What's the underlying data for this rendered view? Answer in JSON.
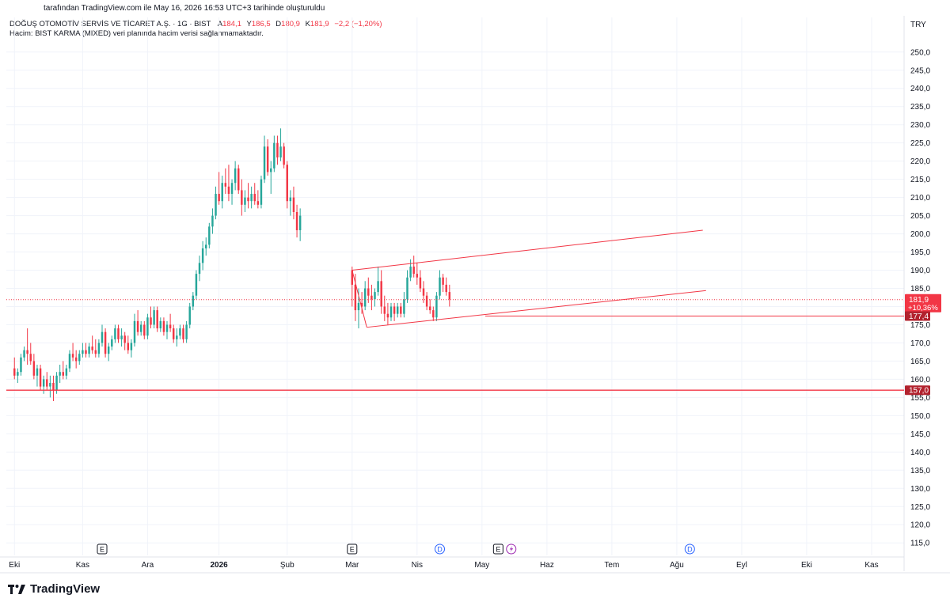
{
  "header": {
    "published_line": "tarafından TradingView.com ile May 16, 2026 16:53 UTC+3 tarihinde oluşturuldu",
    "symbol": "DOĞUŞ OTOMOTİV SERVİS VE TİCARET A.Ş. · 1G · BIST",
    "open_label": "A",
    "open": "184,1",
    "high_label": "Y",
    "high": "186,5",
    "low_label": "D",
    "low": "180,9",
    "close_label": "K",
    "close": "181,9",
    "change": "−2,2 (−1,20%)",
    "volume_note": "Hacim: BIST KARMA (MIXED) veri planında hacim verisi sağlanmamaktadır."
  },
  "brand": {
    "logo_text": "TradingView",
    "logo_icon": "tradingview-logo-icon"
  },
  "colors": {
    "up": "#26a69a",
    "down": "#f23645",
    "line": "#f23645",
    "grid": "#f0f3fa",
    "axis_text": "#131722"
  },
  "chart_data": {
    "type": "candlestick",
    "currency": "TRY",
    "ylim": [
      112,
      253
    ],
    "y_ticks": [
      "250,0",
      "245,0",
      "240,0",
      "235,0",
      "230,0",
      "225,0",
      "220,0",
      "215,0",
      "210,0",
      "205,0",
      "200,0",
      "195,0",
      "190,0",
      "185,0",
      "180,0",
      "175,0",
      "170,0",
      "165,0",
      "160,0",
      "155,0",
      "150,0",
      "145,0",
      "140,0",
      "135,0",
      "130,0",
      "125,0",
      "120,0",
      "115,0"
    ],
    "x_labels": [
      {
        "label": "Eki",
        "x": 0
      },
      {
        "label": "Kas",
        "x": 21
      },
      {
        "label": "Ara",
        "x": 41
      },
      {
        "label": "2026",
        "x": 63,
        "bold": true
      },
      {
        "label": "Şub",
        "x": 84
      },
      {
        "label": "Mar",
        "x": 104
      },
      {
        "label": "Nis",
        "x": 124
      },
      {
        "label": "May",
        "x": 144
      },
      {
        "label": "Haz",
        "x": 164
      },
      {
        "label": "Tem",
        "x": 184
      },
      {
        "label": "Ağu",
        "x": 204
      },
      {
        "label": "Eyl",
        "x": 224
      },
      {
        "label": "Eki",
        "x": 244
      },
      {
        "label": "Kas",
        "x": 264
      }
    ],
    "x_range": [
      -2.5,
      274
    ],
    "candles": [
      [
        163,
        166,
        160,
        161
      ],
      [
        161,
        163,
        159,
        162
      ],
      [
        162,
        167,
        161,
        166
      ],
      [
        166,
        169,
        165,
        168
      ],
      [
        168,
        174,
        164,
        167
      ],
      [
        167,
        170,
        164,
        165
      ],
      [
        165,
        167,
        160,
        161
      ],
      [
        161,
        164,
        158,
        163
      ],
      [
        163,
        164,
        157,
        158
      ],
      [
        158,
        161,
        156,
        160
      ],
      [
        160,
        162,
        157,
        158
      ],
      [
        158,
        161,
        155,
        159
      ],
      [
        159,
        161,
        154,
        157
      ],
      [
        157,
        162,
        156,
        161
      ],
      [
        161,
        164,
        159,
        162
      ],
      [
        162,
        165,
        160,
        161
      ],
      [
        161,
        164,
        160,
        163
      ],
      [
        163,
        168,
        162,
        167
      ],
      [
        167,
        170,
        165,
        166
      ],
      [
        166,
        168,
        163,
        165
      ],
      [
        165,
        168,
        164,
        167
      ],
      [
        167,
        170,
        166,
        168
      ],
      [
        168,
        170,
        166,
        167
      ],
      [
        167,
        170,
        166,
        169
      ],
      [
        169,
        172,
        167,
        168
      ],
      [
        168,
        171,
        166,
        167
      ],
      [
        167,
        171,
        166,
        170
      ],
      [
        170,
        175,
        169,
        173
      ],
      [
        173,
        174,
        166,
        167
      ],
      [
        167,
        170,
        165,
        169
      ],
      [
        169,
        172,
        168,
        171
      ],
      [
        171,
        175,
        170,
        174
      ],
      [
        174,
        175,
        170,
        171
      ],
      [
        171,
        174,
        169,
        172
      ],
      [
        172,
        173,
        168,
        170
      ],
      [
        170,
        172,
        167,
        168
      ],
      [
        168,
        171,
        166,
        170
      ],
      [
        170,
        178,
        169,
        176
      ],
      [
        176,
        179,
        172,
        173
      ],
      [
        173,
        176,
        172,
        175
      ],
      [
        175,
        176,
        171,
        172
      ],
      [
        172,
        178,
        171,
        177
      ],
      [
        177,
        180,
        174,
        175
      ],
      [
        175,
        180,
        174,
        179
      ],
      [
        179,
        180,
        173,
        174
      ],
      [
        174,
        177,
        173,
        176
      ],
      [
        176,
        177,
        172,
        173
      ],
      [
        173,
        176,
        171,
        175
      ],
      [
        175,
        178,
        173,
        174
      ],
      [
        174,
        175,
        170,
        171
      ],
      [
        171,
        174,
        169,
        172
      ],
      [
        172,
        175,
        171,
        174
      ],
      [
        174,
        175,
        170,
        171
      ],
      [
        171,
        176,
        170,
        175
      ],
      [
        175,
        181,
        174,
        180
      ],
      [
        180,
        184,
        179,
        183
      ],
      [
        183,
        190,
        182,
        189
      ],
      [
        189,
        194,
        187,
        192
      ],
      [
        192,
        198,
        190,
        196
      ],
      [
        196,
        199,
        194,
        197
      ],
      [
        197,
        203,
        196,
        202
      ],
      [
        202,
        207,
        200,
        205
      ],
      [
        205,
        213,
        204,
        211
      ],
      [
        211,
        217,
        208,
        209
      ],
      [
        209,
        216,
        207,
        214
      ],
      [
        214,
        218,
        211,
        213
      ],
      [
        213,
        219,
        209,
        211
      ],
      [
        211,
        215,
        208,
        214
      ],
      [
        214,
        220,
        212,
        218
      ],
      [
        218,
        219,
        211,
        212
      ],
      [
        212,
        215,
        205,
        208
      ],
      [
        208,
        212,
        206,
        210
      ],
      [
        210,
        214,
        207,
        209
      ],
      [
        209,
        213,
        207,
        211
      ],
      [
        211,
        214,
        208,
        209
      ],
      [
        209,
        212,
        207,
        208
      ],
      [
        208,
        216,
        207,
        215
      ],
      [
        215,
        227,
        214,
        224
      ],
      [
        224,
        226,
        216,
        217
      ],
      [
        217,
        220,
        211,
        218
      ],
      [
        218,
        227,
        217,
        225
      ],
      [
        225,
        227,
        219,
        221
      ],
      [
        221,
        229,
        220,
        224
      ],
      [
        224,
        225,
        218,
        219
      ],
      [
        219,
        220,
        207,
        209
      ],
      [
        209,
        212,
        205,
        210
      ],
      [
        210,
        213,
        204,
        206
      ],
      [
        206,
        208,
        199,
        201
      ],
      [
        201,
        207,
        198,
        205
      ],
      [
        190,
        191,
        180,
        186
      ],
      [
        186,
        189,
        176,
        179
      ],
      [
        179,
        185,
        174,
        181
      ],
      [
        181,
        184,
        178,
        180
      ],
      [
        180,
        187,
        179,
        185
      ],
      [
        185,
        188,
        181,
        183
      ],
      [
        183,
        186,
        179,
        182
      ],
      [
        182,
        185,
        180,
        184
      ],
      [
        184,
        191,
        183,
        187
      ],
      [
        187,
        190,
        178,
        180
      ],
      [
        180,
        183,
        176,
        178
      ],
      [
        178,
        181,
        175,
        177
      ],
      [
        177,
        181,
        176,
        180
      ],
      [
        180,
        181,
        176,
        178
      ],
      [
        178,
        181,
        177,
        180
      ],
      [
        180,
        181,
        177,
        178
      ],
      [
        178,
        184,
        177,
        182
      ],
      [
        182,
        190,
        181,
        188
      ],
      [
        188,
        193,
        187,
        191
      ],
      [
        191,
        194,
        188,
        189
      ],
      [
        189,
        192,
        186,
        188
      ],
      [
        188,
        190,
        184,
        185
      ],
      [
        185,
        187,
        181,
        183
      ],
      [
        183,
        184,
        179,
        180
      ],
      [
        180,
        182,
        178,
        179
      ],
      [
        179,
        180,
        176,
        177
      ],
      [
        177,
        184,
        176,
        183
      ],
      [
        183,
        190,
        182,
        188
      ],
      [
        188,
        189,
        184,
        186
      ],
      [
        186,
        188,
        183,
        184
      ],
      [
        184,
        186,
        180,
        182
      ]
    ],
    "lines": [
      {
        "name": "upper-channel",
        "x1": 104,
        "y1": 190.0,
        "x2": 212,
        "y2": 201.0
      },
      {
        "name": "lower-channel",
        "x1": 108.5,
        "y1": 174.3,
        "x2": 213,
        "y2": 184.4
      },
      {
        "name": "upper-channel-left-edge",
        "x1": 104,
        "y1": 190.0,
        "x2": 108.5,
        "y2": 174.3
      },
      {
        "name": "support-177-4",
        "x1": 145,
        "y1": 177.4,
        "x2": 274,
        "y2": 177.4
      },
      {
        "name": "support-157",
        "x1": -2.5,
        "y1": 157.0,
        "x2": 274,
        "y2": 157.0
      }
    ],
    "price_line": {
      "value": 181.9,
      "label": "181,9",
      "change": "+10,36%"
    },
    "level_labels": [
      {
        "value": 177.4,
        "label": "177,4"
      },
      {
        "value": 157.0,
        "label": "157,0"
      }
    ],
    "event_markers": [
      {
        "type": "E",
        "x": 27,
        "color": "#131722"
      },
      {
        "type": "E",
        "x": 104,
        "color": "#131722"
      },
      {
        "type": "D",
        "x": 131,
        "color": "#2962ff"
      },
      {
        "type": "E",
        "x": 149,
        "color": "#131722"
      },
      {
        "type": "flash",
        "x": 153,
        "color": "#9c27b0"
      },
      {
        "type": "D",
        "x": 208,
        "color": "#2962ff"
      }
    ]
  }
}
